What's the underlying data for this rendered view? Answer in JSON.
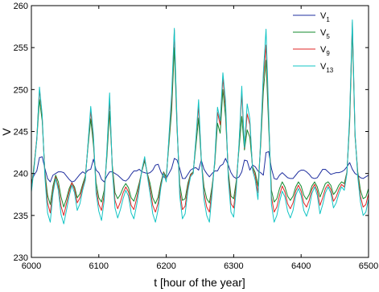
{
  "chart_data": {
    "type": "line",
    "xlabel": "t [hour of the year]",
    "ylabel": "V",
    "xlim": [
      6000,
      6500
    ],
    "ylim": [
      230,
      260
    ],
    "xticks": [
      "6000",
      "6100",
      "6200",
      "6300",
      "6400",
      "6500"
    ],
    "yticks": [
      "230",
      "235",
      "240",
      "245",
      "250",
      "255",
      "260"
    ],
    "grid": false,
    "legend_position": "top-right",
    "legend": [
      {
        "base": "V",
        "sub": "1"
      },
      {
        "base": "V",
        "sub": "5"
      },
      {
        "base": "V",
        "sub": "9"
      },
      {
        "base": "V",
        "sub": "13"
      }
    ],
    "series_colors": [
      "#1f2f9f",
      "#138a2e",
      "#e02424",
      "#12c4c4"
    ],
    "x": [
      6000,
      6004,
      6008,
      6012,
      6016,
      6020,
      6024,
      6028,
      6032,
      6036,
      6040,
      6044,
      6048,
      6052,
      6056,
      6060,
      6064,
      6068,
      6072,
      6076,
      6080,
      6084,
      6088,
      6092,
      6096,
      6100,
      6104,
      6108,
      6112,
      6116,
      6120,
      6124,
      6128,
      6132,
      6136,
      6140,
      6144,
      6148,
      6152,
      6156,
      6160,
      6164,
      6168,
      6172,
      6176,
      6180,
      6184,
      6188,
      6192,
      6196,
      6200,
      6204,
      6208,
      6212,
      6216,
      6220,
      6224,
      6228,
      6232,
      6236,
      6240,
      6244,
      6248,
      6252,
      6256,
      6260,
      6264,
      6268,
      6272,
      6276,
      6280,
      6284,
      6288,
      6292,
      6296,
      6300,
      6304,
      6308,
      6312,
      6316,
      6320,
      6324,
      6328,
      6332,
      6336,
      6340,
      6344,
      6348,
      6352,
      6356,
      6360,
      6364,
      6368,
      6372,
      6376,
      6380,
      6384,
      6388,
      6392,
      6396,
      6400,
      6404,
      6408,
      6412,
      6416,
      6420,
      6424,
      6428,
      6432,
      6436,
      6440,
      6444,
      6448,
      6452,
      6456,
      6460,
      6464,
      6468,
      6472,
      6476,
      6480,
      6484,
      6488,
      6492,
      6496,
      6500
    ],
    "series": [
      {
        "values": [
          239.0,
          239.8,
          240.3,
          241.9,
          242.0,
          240.6,
          239.4,
          239.0,
          239.8,
          240.0,
          240.2,
          240.2,
          240.1,
          239.7,
          239.3,
          239.0,
          239.1,
          239.5,
          239.9,
          240.2,
          240.0,
          240.4,
          240.5,
          241.7,
          240.4,
          240.1,
          239.3,
          239.0,
          239.7,
          240.2,
          240.2,
          240.0,
          239.8,
          239.5,
          239.2,
          239.1,
          239.4,
          239.9,
          240.3,
          240.3,
          240.5,
          240.2,
          240.1,
          240.0,
          240.1,
          240.4,
          241.0,
          241.1,
          240.2,
          239.6,
          239.4,
          240.0,
          240.6,
          241.8,
          241.6,
          240.6,
          239.4,
          239.4,
          239.9,
          240.4,
          240.6,
          240.7,
          240.4,
          241.6,
          240.5,
          240.0,
          239.6,
          240.0,
          240.3,
          240.3,
          240.9,
          241.1,
          241.8,
          241.0,
          240.1,
          239.6,
          239.4,
          239.6,
          240.2,
          241.6,
          241.5,
          240.4,
          241.0,
          240.8,
          240.3,
          240.1,
          239.8,
          242.5,
          242.6,
          240.6,
          239.4,
          239.3,
          239.8,
          240.1,
          239.8,
          239.5,
          239.4,
          239.4,
          239.8,
          240.2,
          240.4,
          240.4,
          240.2,
          239.9,
          239.5,
          239.4,
          239.5,
          240.0,
          240.5,
          240.5,
          240.2,
          239.9,
          240.0,
          240.1,
          240.1,
          240.2,
          240.4,
          240.8,
          241.3,
          240.5,
          240.0,
          239.8,
          239.5,
          239.4,
          239.6,
          239.8
        ]
      },
      {
        "values": [
          238.2,
          241.0,
          244.0,
          248.8,
          246.3,
          240.2,
          237.4,
          236.3,
          238.5,
          239.8,
          239.0,
          237.2,
          236.0,
          237.0,
          238.2,
          238.9,
          238.4,
          237.1,
          237.6,
          238.7,
          239.7,
          243.2,
          246.5,
          243.4,
          238.9,
          237.1,
          236.6,
          238.0,
          242.0,
          247.4,
          241.0,
          237.7,
          237.0,
          237.5,
          238.3,
          238.8,
          238.3,
          237.1,
          236.7,
          237.7,
          238.9,
          240.3,
          241.5,
          240.0,
          238.8,
          237.1,
          236.4,
          237.2,
          238.9,
          240.2,
          239.6,
          243.5,
          247.5,
          255.0,
          245.3,
          238.7,
          236.8,
          237.0,
          238.8,
          239.9,
          240.2,
          243.3,
          246.6,
          241.5,
          238.4,
          237.0,
          236.5,
          238.5,
          241.2,
          246.0,
          244.8,
          250.0,
          246.7,
          240.2,
          237.3,
          237.0,
          239.2,
          243.0,
          246.8,
          242.8,
          245.2,
          244.3,
          240.8,
          240.1,
          238.5,
          243.3,
          249.8,
          253.5,
          245.4,
          238.0,
          236.6,
          237.0,
          238.2,
          239.0,
          238.4,
          237.3,
          236.8,
          237.3,
          238.4,
          239.0,
          238.5,
          237.4,
          236.9,
          237.5,
          238.5,
          239.0,
          238.4,
          237.2,
          238.0,
          238.8,
          239.0,
          238.6,
          237.5,
          237.9,
          238.6,
          239.0,
          238.8,
          240.2,
          246.0,
          257.2,
          244.4,
          240.2,
          238.0,
          237.0,
          237.2,
          238.2
        ]
      },
      {
        "values": [
          238.0,
          240.8,
          244.2,
          250.0,
          246.8,
          239.9,
          236.5,
          235.3,
          238.0,
          239.6,
          238.4,
          236.1,
          235.0,
          236.4,
          237.8,
          238.9,
          238.1,
          236.5,
          237.1,
          238.4,
          239.4,
          243.5,
          247.5,
          244.1,
          238.2,
          236.3,
          235.6,
          237.5,
          242.6,
          248.9,
          240.7,
          236.8,
          235.8,
          236.6,
          237.7,
          238.4,
          237.8,
          236.2,
          235.7,
          237.0,
          238.6,
          240.4,
          241.8,
          239.9,
          238.2,
          236.2,
          235.4,
          236.5,
          238.6,
          240.1,
          239.3,
          244.1,
          248.6,
          257.1,
          245.8,
          238.0,
          235.7,
          236.1,
          238.4,
          239.8,
          240.1,
          243.9,
          248.1,
          241.6,
          237.7,
          236.0,
          235.4,
          238.1,
          241.5,
          247.3,
          245.8,
          251.4,
          247.8,
          239.8,
          236.4,
          235.9,
          238.8,
          243.5,
          249.6,
          243.0,
          247.1,
          245.8,
          240.6,
          239.7,
          237.7,
          243.8,
          251.2,
          255.3,
          246.5,
          237.2,
          235.4,
          236.0,
          237.4,
          238.5,
          237.8,
          236.4,
          235.8,
          236.5,
          237.9,
          238.6,
          237.9,
          236.5,
          236.0,
          236.8,
          238.1,
          238.7,
          237.9,
          236.2,
          237.1,
          238.2,
          238.7,
          238.1,
          236.7,
          237.2,
          238.1,
          238.7,
          238.4,
          240.1,
          246.6,
          258.0,
          244.6,
          239.9,
          237.3,
          236.0,
          236.3,
          237.6
        ]
      },
      {
        "values": [
          237.8,
          240.6,
          244.0,
          250.3,
          247.0,
          239.6,
          235.3,
          234.2,
          237.6,
          239.4,
          238.0,
          235.1,
          234.0,
          235.6,
          237.3,
          238.6,
          237.7,
          235.6,
          236.4,
          238.0,
          239.2,
          243.6,
          248.0,
          244.6,
          237.6,
          235.5,
          234.4,
          236.8,
          242.8,
          249.6,
          240.4,
          235.9,
          234.7,
          235.7,
          237.0,
          238.0,
          237.3,
          235.3,
          234.6,
          236.2,
          238.2,
          240.5,
          242.0,
          239.7,
          237.6,
          235.2,
          234.2,
          235.7,
          238.3,
          240.0,
          239.0,
          244.4,
          249.5,
          257.3,
          246.1,
          237.3,
          234.6,
          235.2,
          237.9,
          239.6,
          240.0,
          244.2,
          248.8,
          241.7,
          236.9,
          235.0,
          234.2,
          237.6,
          241.7,
          247.9,
          246.3,
          252.0,
          248.6,
          239.3,
          235.4,
          234.8,
          238.3,
          243.7,
          250.4,
          243.1,
          248.3,
          246.5,
          240.4,
          239.2,
          236.9,
          244.1,
          252.0,
          257.2,
          246.9,
          236.3,
          234.2,
          235.0,
          236.6,
          237.9,
          237.2,
          235.5,
          234.7,
          235.6,
          237.4,
          238.2,
          237.4,
          235.6,
          234.9,
          235.9,
          237.6,
          238.4,
          237.4,
          235.2,
          236.3,
          237.7,
          238.4,
          237.7,
          235.9,
          236.5,
          237.6,
          238.4,
          238.0,
          240.0,
          247.0,
          258.3,
          244.8,
          239.6,
          236.6,
          235.0,
          235.4,
          237.0
        ]
      }
    ]
  }
}
